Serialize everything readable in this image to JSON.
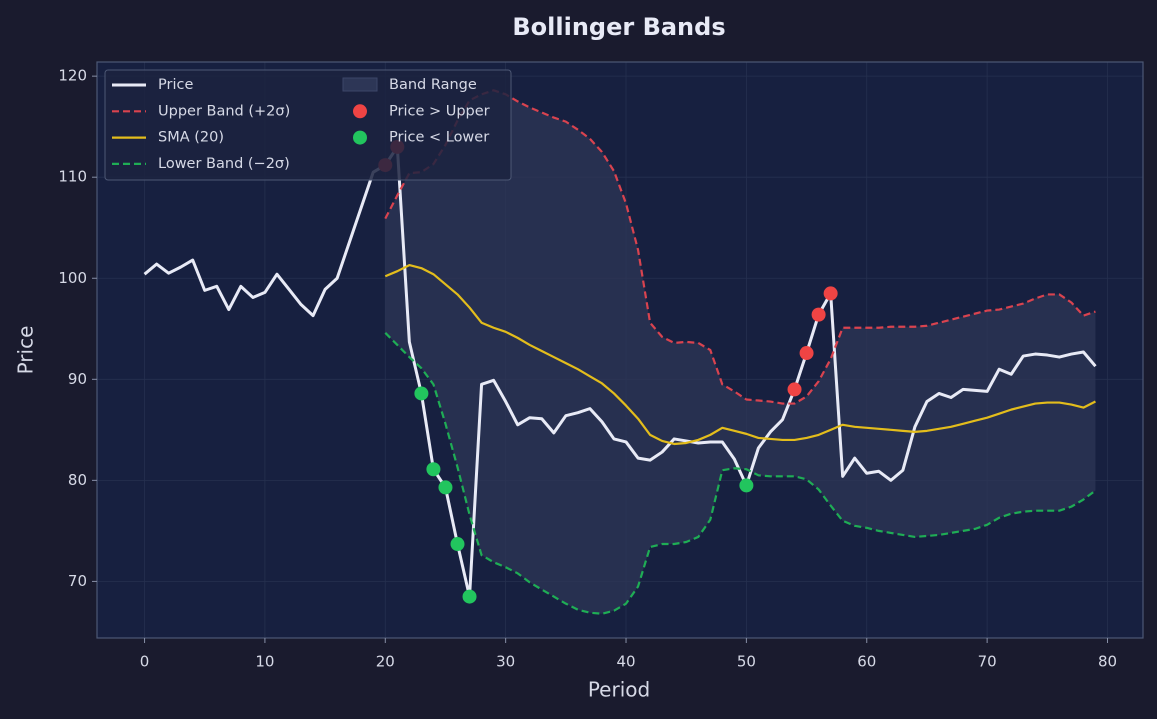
{
  "chart_data": {
    "type": "line",
    "title": "Bollinger Bands",
    "xlabel": "Period",
    "ylabel": "Price",
    "x": [
      0,
      1,
      2,
      3,
      4,
      5,
      6,
      7,
      8,
      9,
      10,
      11,
      12,
      13,
      14,
      15,
      16,
      17,
      18,
      19,
      20,
      21,
      22,
      23,
      24,
      25,
      26,
      27,
      28,
      29,
      30,
      31,
      32,
      33,
      34,
      35,
      36,
      37,
      38,
      39,
      40,
      41,
      42,
      43,
      44,
      45,
      46,
      47,
      48,
      49,
      50,
      51,
      52,
      53,
      54,
      55,
      56,
      57,
      58,
      59,
      60,
      61,
      62,
      63,
      64,
      65,
      66,
      67,
      68,
      69,
      70,
      71,
      72,
      73,
      74,
      75,
      76,
      77,
      78,
      79
    ],
    "xlim": [
      -3.95,
      82.95
    ],
    "ylim": [
      64.4,
      121.4
    ],
    "xticks": [
      0,
      10,
      20,
      30,
      40,
      50,
      60,
      70,
      80
    ],
    "yticks": [
      70,
      80,
      90,
      100,
      110,
      120
    ],
    "grid": true,
    "legend": "upper left",
    "series": [
      {
        "name": "Price",
        "color": "#e8eaf6",
        "linestyle": "-",
        "values": [
          100.4,
          101.4,
          100.5,
          101.1,
          101.8,
          98.8,
          99.2,
          96.9,
          99.2,
          98.1,
          98.6,
          100.4,
          98.9,
          97.4,
          96.3,
          98.9,
          100.0,
          103.5,
          107.0,
          110.5,
          111.2,
          113.0,
          93.7,
          88.6,
          81.1,
          79.3,
          73.7,
          68.5,
          89.5,
          89.9,
          87.8,
          85.5,
          86.2,
          86.1,
          84.7,
          86.4,
          86.7,
          87.1,
          85.8,
          84.1,
          83.8,
          82.2,
          82.0,
          82.8,
          84.1,
          83.9,
          83.7,
          83.8,
          83.8,
          82.1,
          79.5,
          83.2,
          84.8,
          86.0,
          89.0,
          92.6,
          96.4,
          98.5,
          80.4,
          82.2,
          80.7,
          80.9,
          80.0,
          81.0,
          85.3,
          87.8,
          88.6,
          88.2,
          89.0,
          88.9,
          88.8,
          91.0,
          90.5,
          92.3,
          92.5,
          92.4,
          92.2,
          92.5,
          92.7,
          91.3
        ]
      },
      {
        "name": "Upper Band (+2σ)",
        "color": "#d9434f",
        "linestyle": "--",
        "values": [
          null,
          null,
          null,
          null,
          null,
          null,
          null,
          null,
          null,
          null,
          null,
          null,
          null,
          null,
          null,
          null,
          null,
          null,
          null,
          null,
          105.9,
          108.2,
          110.4,
          110.5,
          111.3,
          113.2,
          115.6,
          117.6,
          118.2,
          118.6,
          118.2,
          117.5,
          116.9,
          116.4,
          115.9,
          115.5,
          114.7,
          113.8,
          112.5,
          110.6,
          107.4,
          102.8,
          95.6,
          94.2,
          93.6,
          93.7,
          93.6,
          92.9,
          89.5,
          88.8,
          88.0,
          87.9,
          87.8,
          87.6,
          87.6,
          88.3,
          89.8,
          92.0,
          95.1,
          95.1,
          95.1,
          95.1,
          95.2,
          95.2,
          95.2,
          95.3,
          95.6,
          95.9,
          96.2,
          96.5,
          96.8,
          96.9,
          97.2,
          97.5,
          98.0,
          98.4,
          98.4,
          97.6,
          96.3,
          96.7
        ]
      },
      {
        "name": "SMA (20)",
        "color": "#e3bd1c",
        "linestyle": "-",
        "values": [
          null,
          null,
          null,
          null,
          null,
          null,
          null,
          null,
          null,
          null,
          null,
          null,
          null,
          null,
          null,
          null,
          null,
          null,
          null,
          null,
          100.2,
          100.7,
          101.3,
          101.0,
          100.4,
          99.4,
          98.4,
          97.1,
          95.6,
          95.1,
          94.7,
          94.1,
          93.4,
          92.8,
          92.2,
          91.6,
          91.0,
          90.3,
          89.6,
          88.6,
          87.4,
          86.1,
          84.5,
          83.9,
          83.6,
          83.7,
          84.0,
          84.5,
          85.2,
          84.9,
          84.6,
          84.2,
          84.1,
          84.0,
          84.0,
          84.2,
          84.5,
          85.0,
          85.5,
          85.3,
          85.2,
          85.1,
          85.0,
          84.9,
          84.8,
          84.9,
          85.1,
          85.3,
          85.6,
          85.9,
          86.2,
          86.6,
          87.0,
          87.3,
          87.6,
          87.7,
          87.7,
          87.5,
          87.2,
          87.8
        ]
      },
      {
        "name": "Lower Band (−2σ)",
        "color": "#1fad55",
        "linestyle": "--",
        "values": [
          null,
          null,
          null,
          null,
          null,
          null,
          null,
          null,
          null,
          null,
          null,
          null,
          null,
          null,
          null,
          null,
          null,
          null,
          null,
          null,
          94.6,
          93.4,
          92.2,
          91.1,
          89.5,
          85.6,
          81.3,
          76.6,
          72.6,
          71.9,
          71.4,
          70.8,
          69.9,
          69.2,
          68.5,
          67.8,
          67.2,
          66.9,
          66.8,
          67.1,
          67.8,
          69.5,
          73.4,
          73.7,
          73.7,
          73.9,
          74.4,
          76.1,
          81.0,
          81.2,
          81.1,
          80.5,
          80.4,
          80.4,
          80.4,
          80.1,
          79.1,
          77.5,
          76.0,
          75.5,
          75.3,
          75.0,
          74.8,
          74.6,
          74.4,
          74.5,
          74.6,
          74.8,
          75.0,
          75.2,
          75.6,
          76.3,
          76.7,
          76.9,
          77.0,
          77.0,
          77.0,
          77.4,
          78.1,
          79.0
        ]
      }
    ],
    "band": {
      "name": "Band Range",
      "color": "#2d3656",
      "between": [
        1,
        3
      ]
    },
    "markers": [
      {
        "name": "Price > Upper",
        "color": "#ef4444",
        "x": [
          20,
          21,
          54,
          55,
          56,
          57
        ],
        "values": [
          111.2,
          113.0,
          89.0,
          92.6,
          96.4,
          98.5
        ]
      },
      {
        "name": "Price < Lower",
        "color": "#22c55e",
        "x": [
          23,
          24,
          25,
          26,
          27,
          50
        ],
        "values": [
          88.6,
          81.1,
          79.3,
          73.7,
          68.5,
          79.5
        ]
      }
    ]
  }
}
